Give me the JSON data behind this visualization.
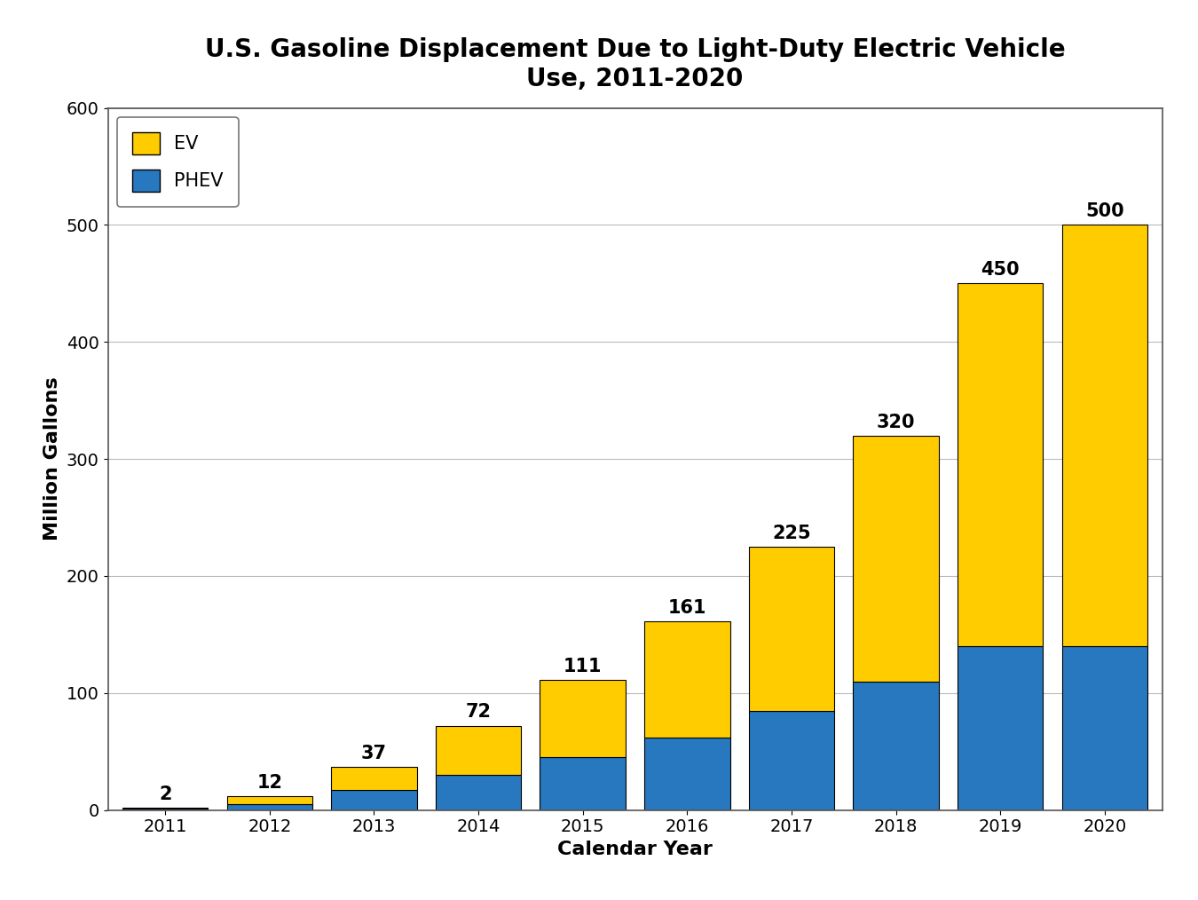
{
  "years": [
    "2011",
    "2012",
    "2013",
    "2014",
    "2015",
    "2016",
    "2017",
    "2018",
    "2019",
    "2020"
  ],
  "totals": [
    2,
    12,
    37,
    72,
    111,
    161,
    225,
    320,
    450,
    500
  ],
  "phev": [
    1,
    5,
    17,
    30,
    45,
    62,
    85,
    110,
    140,
    140
  ],
  "ev_color": "#FFCC00",
  "phev_color": "#2878C0",
  "bar_edge_color": "#000000",
  "title": "U.S. Gasoline Displacement Due to Light-Duty Electric Vehicle\nUse, 2011-2020",
  "xlabel": "Calendar Year",
  "ylabel": "Million Gallons",
  "ylim": [
    0,
    600
  ],
  "yticks": [
    0,
    100,
    200,
    300,
    400,
    500,
    600
  ],
  "legend_ev": "EV",
  "legend_phev": "PHEV",
  "title_fontsize": 20,
  "axis_label_fontsize": 16,
  "tick_fontsize": 14,
  "annotation_fontsize": 15,
  "legend_fontsize": 15,
  "background_color": "#FFFFFF",
  "grid_color": "#BBBBBB",
  "bar_width": 0.82
}
